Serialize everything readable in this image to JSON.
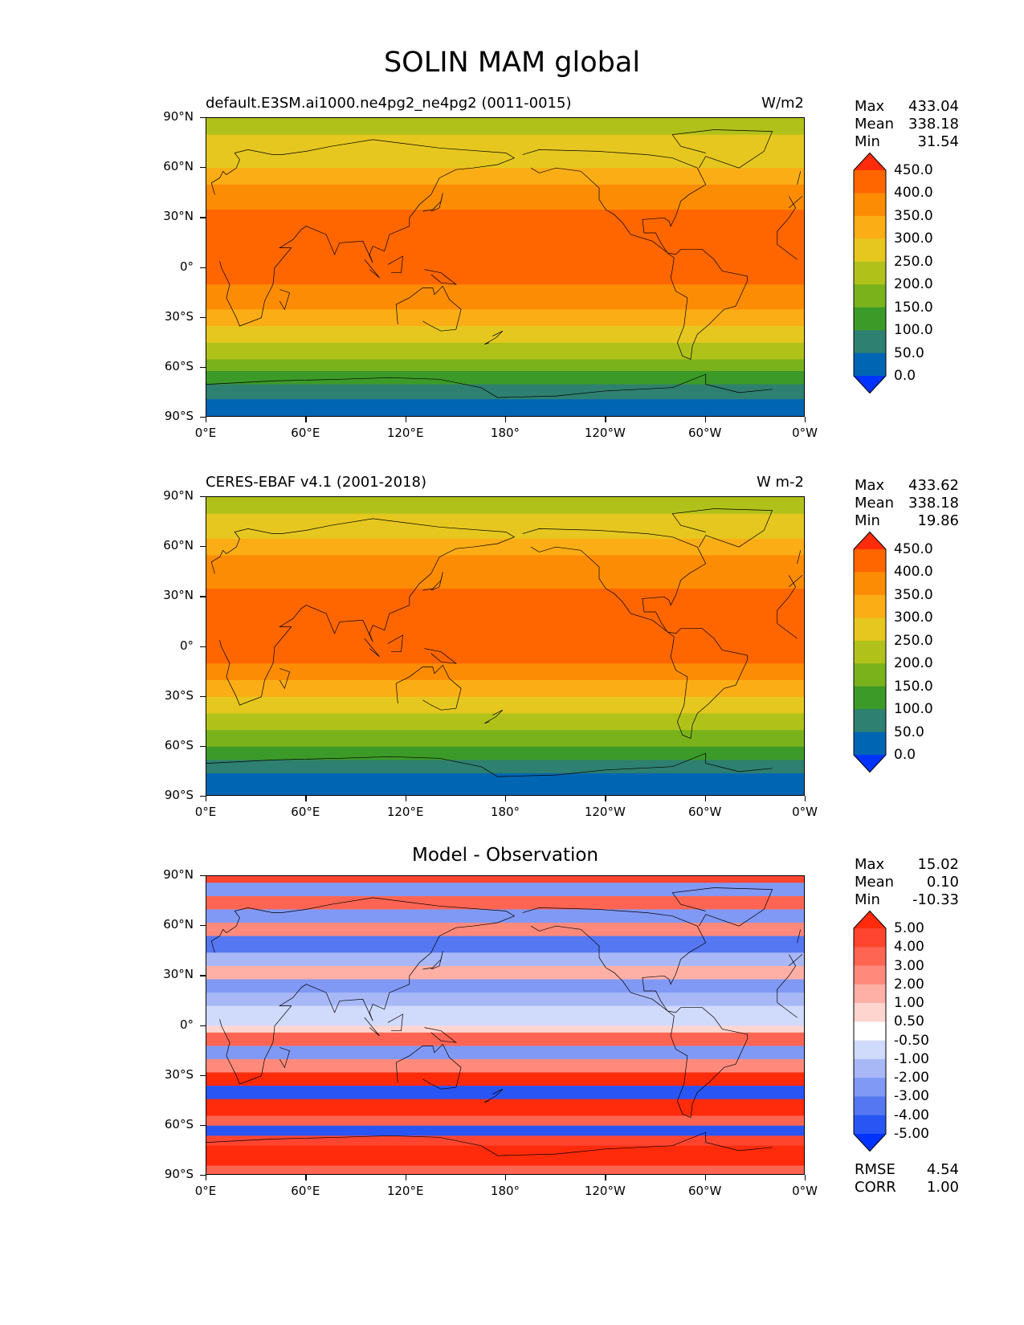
{
  "title": "SOLIN MAM global",
  "chart_data": [
    {
      "type": "heatmap",
      "title": "default.E3SM.ai1000.ne4pg2_ne4pg2 (0011-0015)",
      "units": "W/m2",
      "stats": {
        "max": "433.04",
        "mean": "338.18",
        "min": "31.54"
      },
      "colorbar": {
        "levels": [
          "0.0",
          "50.0",
          "100.0",
          "150.0",
          "200.0",
          "250.0",
          "300.0",
          "350.0",
          "400.0",
          "450.0"
        ],
        "colors": [
          "#0033ff",
          "#0066b3",
          "#2e8070",
          "#3c9a28",
          "#7ab21c",
          "#b0c21a",
          "#e6c71f",
          "#fbad16",
          "#fd8c05",
          "#ff6600",
          "#ff2b0a"
        ]
      },
      "bands": [
        {
          "lat_top": 90,
          "lat_bottom": 80,
          "value": 210
        },
        {
          "lat_top": 80,
          "lat_bottom": 60,
          "value": 270
        },
        {
          "lat_top": 60,
          "lat_bottom": 50,
          "value": 320
        },
        {
          "lat_top": 50,
          "lat_bottom": 35,
          "value": 375
        },
        {
          "lat_top": 35,
          "lat_bottom": -10,
          "value": 420
        },
        {
          "lat_top": -10,
          "lat_bottom": -25,
          "value": 380
        },
        {
          "lat_top": -25,
          "lat_bottom": -35,
          "value": 320
        },
        {
          "lat_top": -35,
          "lat_bottom": -45,
          "value": 270
        },
        {
          "lat_top": -45,
          "lat_bottom": -55,
          "value": 220
        },
        {
          "lat_top": -55,
          "lat_bottom": -62,
          "value": 175
        },
        {
          "lat_top": -62,
          "lat_bottom": -70,
          "value": 130
        },
        {
          "lat_top": -70,
          "lat_bottom": -79,
          "value": 90
        },
        {
          "lat_top": -79,
          "lat_bottom": -90,
          "value": 40
        }
      ]
    },
    {
      "type": "heatmap",
      "title": "CERES-EBAF v4.1 (2001-2018)",
      "units": "W m-2",
      "stats": {
        "max": "433.62",
        "mean": "338.18",
        "min": "19.86"
      },
      "colorbar": {
        "levels": [
          "0.0",
          "50.0",
          "100.0",
          "150.0",
          "200.0",
          "250.0",
          "300.0",
          "350.0",
          "400.0",
          "450.0"
        ],
        "colors": [
          "#0033ff",
          "#0066b3",
          "#2e8070",
          "#3c9a28",
          "#7ab21c",
          "#b0c21a",
          "#e6c71f",
          "#fbad16",
          "#fd8c05",
          "#ff6600",
          "#ff2b0a"
        ]
      },
      "bands": [
        {
          "lat_top": 90,
          "lat_bottom": 80,
          "value": 210
        },
        {
          "lat_top": 80,
          "lat_bottom": 65,
          "value": 270
        },
        {
          "lat_top": 65,
          "lat_bottom": 55,
          "value": 320
        },
        {
          "lat_top": 55,
          "lat_bottom": 35,
          "value": 375
        },
        {
          "lat_top": 35,
          "lat_bottom": -10,
          "value": 420
        },
        {
          "lat_top": -10,
          "lat_bottom": -20,
          "value": 380
        },
        {
          "lat_top": -20,
          "lat_bottom": -30,
          "value": 330
        },
        {
          "lat_top": -30,
          "lat_bottom": -40,
          "value": 280
        },
        {
          "lat_top": -40,
          "lat_bottom": -50,
          "value": 230
        },
        {
          "lat_top": -50,
          "lat_bottom": -60,
          "value": 175
        },
        {
          "lat_top": -60,
          "lat_bottom": -68,
          "value": 130
        },
        {
          "lat_top": -68,
          "lat_bottom": -76,
          "value": 90
        },
        {
          "lat_top": -76,
          "lat_bottom": -90,
          "value": 40
        }
      ]
    },
    {
      "type": "heatmap",
      "title": "Model - Observation",
      "stats": {
        "max": "15.02",
        "mean": "0.10",
        "min": "-10.33"
      },
      "metrics": {
        "rmse": "4.54",
        "corr": "1.00"
      },
      "colorbar": {
        "levels": [
          "-5.00",
          "-4.00",
          "-3.00",
          "-2.00",
          "-1.00",
          "-0.50",
          "0.50",
          "1.00",
          "2.00",
          "3.00",
          "4.00",
          "5.00"
        ],
        "colors": [
          "#0033ff",
          "#2a55f5",
          "#5577f2",
          "#8099f5",
          "#a8b8f7",
          "#d0dafb",
          "#ffffff",
          "#ffd5d0",
          "#ffb0a6",
          "#ff8a7c",
          "#ff6552",
          "#ff4530",
          "#ff2b0a"
        ]
      },
      "bands": [
        {
          "lat_top": 90,
          "lat_bottom": 86,
          "value": 4
        },
        {
          "lat_top": 86,
          "lat_bottom": 78,
          "value": -2.5
        },
        {
          "lat_top": 78,
          "lat_bottom": 70,
          "value": 3
        },
        {
          "lat_top": 70,
          "lat_bottom": 62,
          "value": -3
        },
        {
          "lat_top": 62,
          "lat_bottom": 54,
          "value": 2.5
        },
        {
          "lat_top": 54,
          "lat_bottom": 44,
          "value": -3.5
        },
        {
          "lat_top": 44,
          "lat_bottom": 36,
          "value": -1.5
        },
        {
          "lat_top": 36,
          "lat_bottom": 28,
          "value": 1.5
        },
        {
          "lat_top": 28,
          "lat_bottom": 20,
          "value": -2.5
        },
        {
          "lat_top": 20,
          "lat_bottom": 12,
          "value": -1.5
        },
        {
          "lat_top": 12,
          "lat_bottom": 0,
          "value": -0.8
        },
        {
          "lat_top": 0,
          "lat_bottom": -4,
          "value": 0.8
        },
        {
          "lat_top": -4,
          "lat_bottom": -12,
          "value": 3.5
        },
        {
          "lat_top": -12,
          "lat_bottom": -20,
          "value": -2.5
        },
        {
          "lat_top": -20,
          "lat_bottom": -28,
          "value": 2.5
        },
        {
          "lat_top": -28,
          "lat_bottom": -36,
          "value": 6
        },
        {
          "lat_top": -36,
          "lat_bottom": -44,
          "value": -4.5
        },
        {
          "lat_top": -44,
          "lat_bottom": -54,
          "value": 6
        },
        {
          "lat_top": -54,
          "lat_bottom": -60,
          "value": 3.5
        },
        {
          "lat_top": -60,
          "lat_bottom": -66,
          "value": -4.5
        },
        {
          "lat_top": -66,
          "lat_bottom": -72,
          "value": 4
        },
        {
          "lat_top": -72,
          "lat_bottom": -84,
          "value": 6
        },
        {
          "lat_top": -84,
          "lat_bottom": -90,
          "value": 3
        }
      ]
    }
  ],
  "axes": {
    "lat_ticks": [
      "90°N",
      "60°N",
      "30°N",
      "0°",
      "30°S",
      "60°S",
      "90°S"
    ],
    "lon_ticks": [
      "0°E",
      "60°E",
      "120°E",
      "180°",
      "120°W",
      "60°W",
      "0°W"
    ]
  },
  "labels": {
    "max": "Max",
    "mean": "Mean",
    "min": "Min",
    "rmse": "RMSE",
    "corr": "CORR"
  }
}
